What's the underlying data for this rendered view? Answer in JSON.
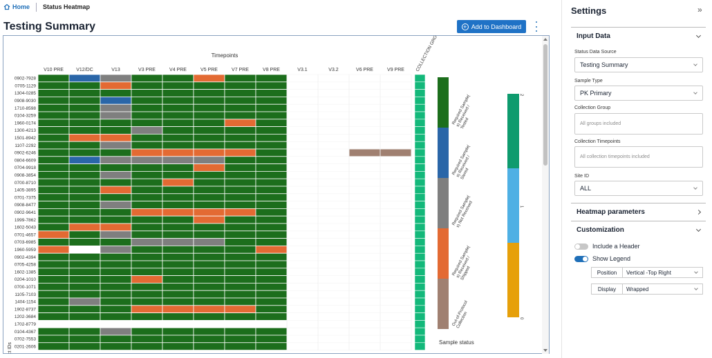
{
  "breadcrumb": {
    "home": "Home",
    "current": "Status Heatmap"
  },
  "page": {
    "title": "Testing Summary",
    "add_button": "Add to Dashboard"
  },
  "chart_data": {
    "type": "heatmap",
    "x_group_label": "Timepoints",
    "y_axis_label": "Subject IDs",
    "columns": [
      "V10 PRE",
      "V12/DC",
      "V13",
      "V3 PRE",
      "V4 PRE",
      "V5 PRE",
      "V7 PRE",
      "V8 PRE",
      "V3.1",
      "V3.2",
      "V6 PRE",
      "V9 PRE"
    ],
    "collection_group_label": "COLLECTION GROUP",
    "rows": [
      "0902-7928",
      "0705-1129",
      "1304-0285",
      "0908-9030",
      "1710-8598",
      "0104-3259",
      "1960-0174",
      "1300-4213",
      "1501-8942",
      "1107-2292",
      "0902-6246",
      "0804-6609",
      "0704-9918",
      "0908-3854",
      "0700-8710",
      "1405-3895",
      "0701-7375",
      "0908-8477",
      "0902-9641",
      "1999-7862",
      "1602-5043",
      "0701-4657",
      "0703-6985",
      "1960-5959",
      "0902-4394",
      "0705-4258",
      "1602-1385",
      "0204-1010",
      "0700-1071",
      "1105-7103",
      "1404-1154",
      "1902-8737",
      "1202-3684",
      "1702-8779",
      "0104-4367",
      "0702-7553",
      "0201-2606"
    ],
    "status_codes": {
      "G": "Required Sample(s) Received / Tested",
      "B": "Required Sample(s) Received / Stored",
      "Y": "Required Sample(s) Not Received",
      "O": "Required Sample(s) Received / Shipped",
      "P": "Out-of-Protocol Collection",
      "W": "no data",
      "_": "not applicable"
    },
    "cells": [
      "GBYGGOGG____",
      "GGOGGGGG____",
      "GGGGGGGG____",
      "GGBGGGGG____",
      "GGYGGGGG____",
      "GGYGGGGG____",
      "GGGGGGOG____",
      "GGGYGGGG____",
      "GOOGGGGG____",
      "GGYGGGGG____",
      "GGGOOOOG__PP",
      "GBYYYYGG____",
      "GGGGGOGG____",
      "GGYGGGGG____",
      "GGGGOGGG____",
      "GGOGGGGG____",
      "GGGGGGGG____",
      "GGYGGGGG____",
      "GGGOOOOG____",
      "GGGGGOGG____",
      "GOOGGGGG____",
      "OGYGGGGG____",
      "GGGYYYGG____",
      "OWYGGGGO____",
      "GGGGGGGG____",
      "GGGGGGGG____",
      "GGGGGGGG____",
      "GGGOGGGG____",
      "GGGGGGGG____",
      "GGGGGGGG____",
      "GYGGGGGG____",
      "GGGOOOOG____",
      "GGGGGGGG____",
      "W___________",
      "GGYGGGGG____",
      "GGGGGGGG____",
      "GGGGGGGG____"
    ],
    "legend": {
      "title": "Sample status",
      "items": [
        {
          "code": "G",
          "label": "Required Sample(s) Received / Tested"
        },
        {
          "code": "B",
          "label": "Required Sample(s) Received / Stored"
        },
        {
          "code": "Y",
          "label": "Required Sample(s) Not Received"
        },
        {
          "code": "O",
          "label": "Required Sample(s) Received / Shipped"
        },
        {
          "code": "P",
          "label": "Out-of-Protocol Collection"
        }
      ]
    },
    "group_legend": {
      "ticks": [
        "2",
        "1",
        "0"
      ],
      "colors": [
        "#0e9b6e",
        "#4fb0e4",
        "#e6a00a"
      ]
    },
    "colors": {
      "G": "#1c6e1c",
      "B": "#2a66a8",
      "Y": "#7f7f7f",
      "O": "#e36a33",
      "P": "#a08071",
      "W": "#ffffff",
      "collection": "#13b87a"
    }
  },
  "settings": {
    "title": "Settings",
    "input_data": {
      "header": "Input Data",
      "status_source_label": "Status Data Source",
      "status_source_value": "Testing Summary",
      "sample_type_label": "Sample Type",
      "sample_type_value": "PK Primary",
      "collection_group_label": "Collection Group",
      "collection_group_placeholder": "All groups included",
      "collection_timepoints_label": "Collection Timepoints",
      "collection_timepoints_placeholder": "All collection timepoints included",
      "site_id_label": "Site ID",
      "site_id_value": "ALL"
    },
    "heatmap_params": {
      "header": "Heatmap parameters"
    },
    "customization": {
      "header": "Customization",
      "include_header": "Include a Header",
      "include_header_on": false,
      "show_legend": "Show Legend",
      "show_legend_on": true,
      "position_label": "Position",
      "position_value": "Vertical -Top Right",
      "display_label": "Display",
      "display_value": "Wrapped"
    }
  }
}
